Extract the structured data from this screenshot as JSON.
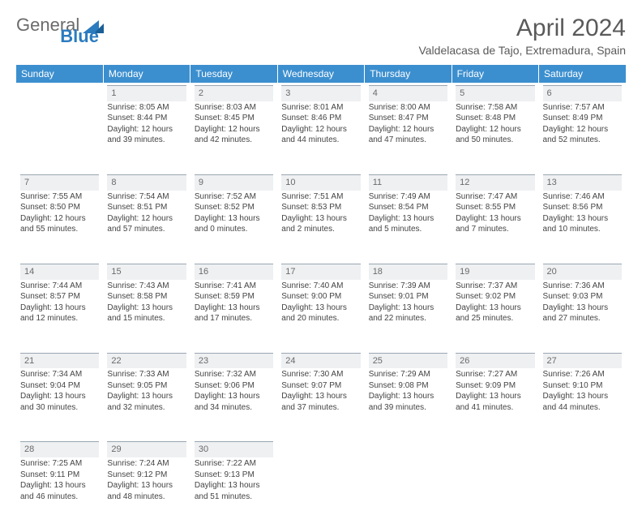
{
  "logo": {
    "word1": "General",
    "word2": "Blue"
  },
  "title": "April 2024",
  "location": "Valdelacasa de Tajo, Extremadura, Spain",
  "colors": {
    "header_bg": "#3c8fcf",
    "header_text": "#ffffff",
    "daynum_bg": "#eef0f2",
    "daynum_border": "#9aa6b2",
    "body_text": "#444444",
    "title_text": "#5a5a5a",
    "logo_gray": "#6b6b6b",
    "logo_blue": "#2b7bbf"
  },
  "day_headers": [
    "Sunday",
    "Monday",
    "Tuesday",
    "Wednesday",
    "Thursday",
    "Friday",
    "Saturday"
  ],
  "weeks": [
    [
      {
        "n": "",
        "t": ""
      },
      {
        "n": "1",
        "t": "Sunrise: 8:05 AM\nSunset: 8:44 PM\nDaylight: 12 hours and 39 minutes."
      },
      {
        "n": "2",
        "t": "Sunrise: 8:03 AM\nSunset: 8:45 PM\nDaylight: 12 hours and 42 minutes."
      },
      {
        "n": "3",
        "t": "Sunrise: 8:01 AM\nSunset: 8:46 PM\nDaylight: 12 hours and 44 minutes."
      },
      {
        "n": "4",
        "t": "Sunrise: 8:00 AM\nSunset: 8:47 PM\nDaylight: 12 hours and 47 minutes."
      },
      {
        "n": "5",
        "t": "Sunrise: 7:58 AM\nSunset: 8:48 PM\nDaylight: 12 hours and 50 minutes."
      },
      {
        "n": "6",
        "t": "Sunrise: 7:57 AM\nSunset: 8:49 PM\nDaylight: 12 hours and 52 minutes."
      }
    ],
    [
      {
        "n": "7",
        "t": "Sunrise: 7:55 AM\nSunset: 8:50 PM\nDaylight: 12 hours and 55 minutes."
      },
      {
        "n": "8",
        "t": "Sunrise: 7:54 AM\nSunset: 8:51 PM\nDaylight: 12 hours and 57 minutes."
      },
      {
        "n": "9",
        "t": "Sunrise: 7:52 AM\nSunset: 8:52 PM\nDaylight: 13 hours and 0 minutes."
      },
      {
        "n": "10",
        "t": "Sunrise: 7:51 AM\nSunset: 8:53 PM\nDaylight: 13 hours and 2 minutes."
      },
      {
        "n": "11",
        "t": "Sunrise: 7:49 AM\nSunset: 8:54 PM\nDaylight: 13 hours and 5 minutes."
      },
      {
        "n": "12",
        "t": "Sunrise: 7:47 AM\nSunset: 8:55 PM\nDaylight: 13 hours and 7 minutes."
      },
      {
        "n": "13",
        "t": "Sunrise: 7:46 AM\nSunset: 8:56 PM\nDaylight: 13 hours and 10 minutes."
      }
    ],
    [
      {
        "n": "14",
        "t": "Sunrise: 7:44 AM\nSunset: 8:57 PM\nDaylight: 13 hours and 12 minutes."
      },
      {
        "n": "15",
        "t": "Sunrise: 7:43 AM\nSunset: 8:58 PM\nDaylight: 13 hours and 15 minutes."
      },
      {
        "n": "16",
        "t": "Sunrise: 7:41 AM\nSunset: 8:59 PM\nDaylight: 13 hours and 17 minutes."
      },
      {
        "n": "17",
        "t": "Sunrise: 7:40 AM\nSunset: 9:00 PM\nDaylight: 13 hours and 20 minutes."
      },
      {
        "n": "18",
        "t": "Sunrise: 7:39 AM\nSunset: 9:01 PM\nDaylight: 13 hours and 22 minutes."
      },
      {
        "n": "19",
        "t": "Sunrise: 7:37 AM\nSunset: 9:02 PM\nDaylight: 13 hours and 25 minutes."
      },
      {
        "n": "20",
        "t": "Sunrise: 7:36 AM\nSunset: 9:03 PM\nDaylight: 13 hours and 27 minutes."
      }
    ],
    [
      {
        "n": "21",
        "t": "Sunrise: 7:34 AM\nSunset: 9:04 PM\nDaylight: 13 hours and 30 minutes."
      },
      {
        "n": "22",
        "t": "Sunrise: 7:33 AM\nSunset: 9:05 PM\nDaylight: 13 hours and 32 minutes."
      },
      {
        "n": "23",
        "t": "Sunrise: 7:32 AM\nSunset: 9:06 PM\nDaylight: 13 hours and 34 minutes."
      },
      {
        "n": "24",
        "t": "Sunrise: 7:30 AM\nSunset: 9:07 PM\nDaylight: 13 hours and 37 minutes."
      },
      {
        "n": "25",
        "t": "Sunrise: 7:29 AM\nSunset: 9:08 PM\nDaylight: 13 hours and 39 minutes."
      },
      {
        "n": "26",
        "t": "Sunrise: 7:27 AM\nSunset: 9:09 PM\nDaylight: 13 hours and 41 minutes."
      },
      {
        "n": "27",
        "t": "Sunrise: 7:26 AM\nSunset: 9:10 PM\nDaylight: 13 hours and 44 minutes."
      }
    ],
    [
      {
        "n": "28",
        "t": "Sunrise: 7:25 AM\nSunset: 9:11 PM\nDaylight: 13 hours and 46 minutes."
      },
      {
        "n": "29",
        "t": "Sunrise: 7:24 AM\nSunset: 9:12 PM\nDaylight: 13 hours and 48 minutes."
      },
      {
        "n": "30",
        "t": "Sunrise: 7:22 AM\nSunset: 9:13 PM\nDaylight: 13 hours and 51 minutes."
      },
      {
        "n": "",
        "t": ""
      },
      {
        "n": "",
        "t": ""
      },
      {
        "n": "",
        "t": ""
      },
      {
        "n": "",
        "t": ""
      }
    ]
  ]
}
